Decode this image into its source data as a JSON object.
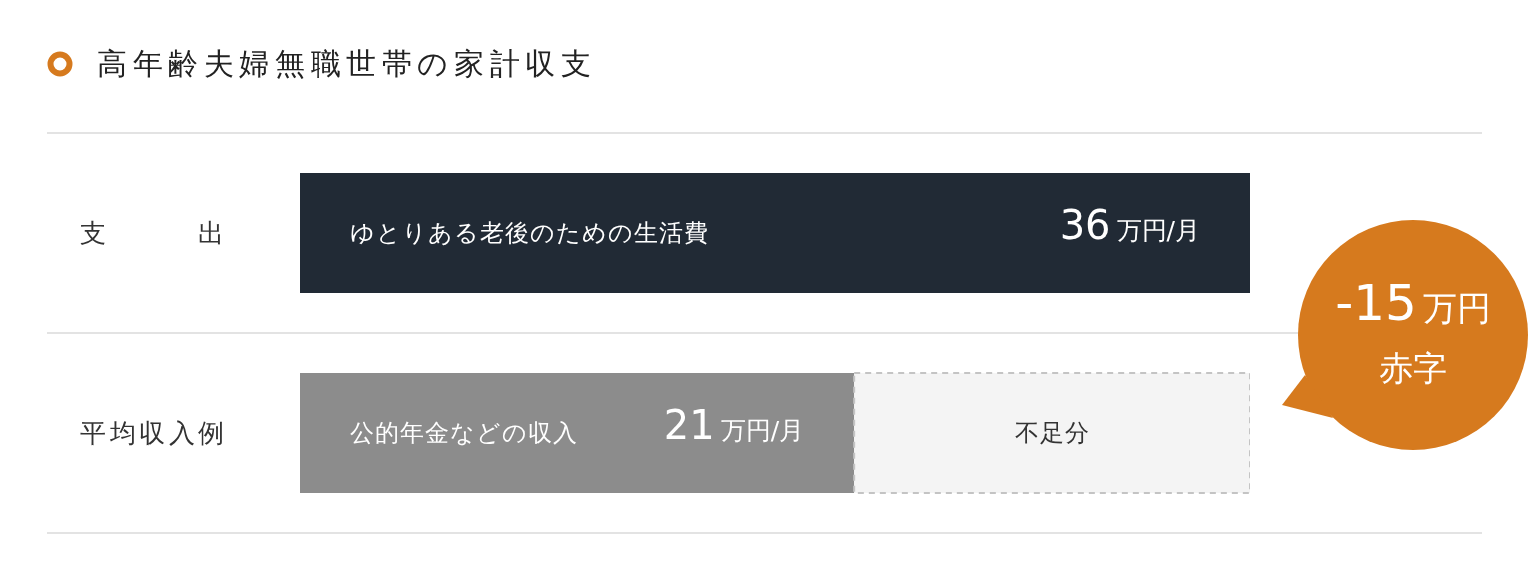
{
  "chart_data": {
    "type": "bar",
    "orientation": "horizontal",
    "stacked": true,
    "title": "高年齢夫婦無職世帯の家計収支",
    "categories": [
      "支出",
      "平均収入例"
    ],
    "series": [
      {
        "name": "ゆとりある老後のための生活費",
        "color": "#212a35",
        "values": [
          36,
          null
        ],
        "value_labels": [
          "36万円/月",
          null
        ]
      },
      {
        "name": "公的年金などの収入",
        "color": "#8c8c8c",
        "values": [
          null,
          21
        ],
        "value_labels": [
          null,
          "21万円/月"
        ]
      },
      {
        "name": "不足分",
        "color": "#f4f4f4",
        "values": [
          null,
          15
        ],
        "line_style": "dashed"
      }
    ],
    "annotations": [
      "-15万円赤字"
    ],
    "grid": "y",
    "tick_labels": "y"
  }
}
